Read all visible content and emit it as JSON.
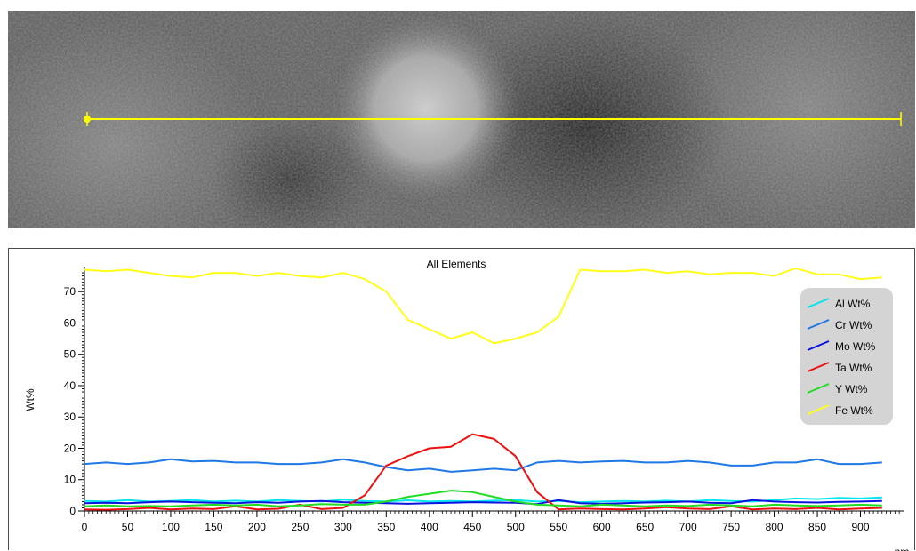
{
  "image_panel": {
    "line_color": "#ffff00"
  },
  "chart_data": {
    "type": "line",
    "title": "All Elements",
    "xlabel": "nm",
    "ylabel": "Wt%",
    "xlim": [
      0,
      950
    ],
    "ylim": [
      0,
      78
    ],
    "xticks": [
      0,
      50,
      100,
      150,
      200,
      250,
      300,
      350,
      400,
      450,
      500,
      550,
      600,
      650,
      700,
      750,
      800,
      850,
      900
    ],
    "yticks": [
      0,
      10,
      20,
      30,
      40,
      50,
      60,
      70
    ],
    "grid": false,
    "legend_position": "top-right",
    "x": [
      0,
      25,
      50,
      75,
      100,
      125,
      150,
      175,
      200,
      225,
      250,
      275,
      300,
      325,
      350,
      375,
      400,
      425,
      450,
      475,
      500,
      525,
      550,
      575,
      600,
      625,
      650,
      675,
      700,
      725,
      750,
      775,
      800,
      825,
      850,
      875,
      900,
      925
    ],
    "series": [
      {
        "name": "Al Wt%",
        "color": "#00e5ee",
        "values": [
          3.2,
          3.0,
          3.5,
          3.0,
          3.2,
          3.5,
          3.0,
          3.3,
          3.0,
          3.5,
          3.2,
          3.0,
          3.6,
          3.2,
          3.0,
          3.4,
          3.0,
          3.2,
          3.0,
          3.3,
          3.5,
          3.0,
          3.2,
          2.8,
          3.0,
          3.2,
          3.0,
          3.3,
          3.0,
          3.5,
          3.2,
          3.0,
          3.5,
          4.0,
          3.8,
          4.2,
          4.0,
          4.3
        ]
      },
      {
        "name": "Cr Wt%",
        "color": "#1e78e6",
        "values": [
          15,
          15.5,
          15,
          15.5,
          16.5,
          15.8,
          16,
          15.5,
          15.5,
          15,
          15,
          15.5,
          16.5,
          15.5,
          14,
          13,
          13.5,
          12.5,
          13,
          13.5,
          13,
          15.5,
          16,
          15.5,
          15.8,
          16,
          15.5,
          15.5,
          16,
          15.5,
          14.5,
          14.5,
          15.5,
          15.5,
          16.5,
          15,
          15,
          15.5
        ]
      },
      {
        "name": "Mo Wt%",
        "color": "#0a14dc",
        "values": [
          2.5,
          2.6,
          2.5,
          2.8,
          3.0,
          2.8,
          2.6,
          2.5,
          2.8,
          2.6,
          3.0,
          3.2,
          2.8,
          2.6,
          2.5,
          2.3,
          2.5,
          2.6,
          2.8,
          2.7,
          2.6,
          2.2,
          3.5,
          2.5,
          2.3,
          2.5,
          2.7,
          2.8,
          3.0,
          2.6,
          2.5,
          3.5,
          3.0,
          2.8,
          2.7,
          2.9,
          3.0,
          3.2
        ]
      },
      {
        "name": "Ta Wt%",
        "color": "#ee1111",
        "values": [
          0.5,
          0.4,
          0.6,
          1.0,
          0.5,
          0.8,
          0.6,
          1.5,
          0.5,
          0.7,
          2.0,
          0.6,
          1.0,
          5.0,
          14.5,
          17.5,
          20,
          20.5,
          24.5,
          23,
          17.5,
          6.0,
          0.5,
          0.8,
          0.6,
          0.5,
          0.8,
          1.2,
          0.8,
          0.6,
          1.5,
          0.5,
          0.8,
          0.6,
          1.0,
          0.5,
          0.8,
          1.0
        ]
      },
      {
        "name": "Y Wt%",
        "color": "#22dd22",
        "values": [
          1.5,
          1.8,
          1.5,
          1.6,
          1.5,
          1.8,
          2.0,
          1.8,
          2.0,
          1.5,
          1.8,
          2.2,
          2.0,
          2.0,
          3.0,
          4.5,
          5.5,
          6.5,
          6.0,
          4.5,
          3.0,
          2.0,
          1.8,
          1.5,
          2.0,
          1.8,
          1.5,
          1.8,
          1.6,
          2.0,
          1.8,
          1.5,
          2.0,
          1.8,
          1.6,
          1.8,
          2.0,
          1.8
        ]
      },
      {
        "name": "Fe Wt%",
        "color": "#ffff1a",
        "values": [
          77,
          76.5,
          77,
          76,
          75,
          74.5,
          76,
          76,
          75,
          76,
          75,
          74.5,
          76,
          74,
          70,
          61,
          58,
          55,
          57,
          53.5,
          55,
          57,
          62,
          77,
          76.5,
          76.5,
          77,
          76,
          76.5,
          75.5,
          76,
          76,
          75,
          77.5,
          75.5,
          75.5,
          74,
          74.5
        ]
      }
    ]
  }
}
